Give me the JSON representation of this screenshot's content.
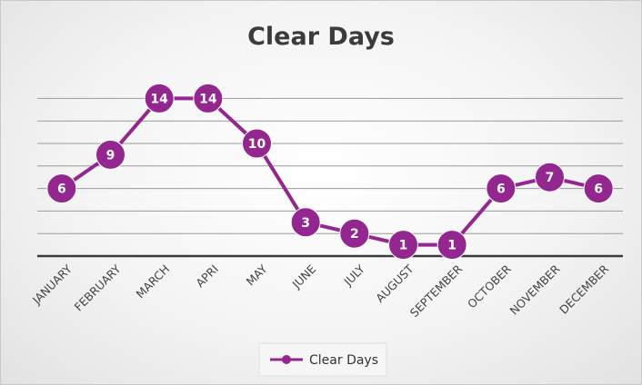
{
  "chart_data": {
    "type": "line",
    "title": "Clear Days",
    "categories": [
      "JANUARY",
      "FEBRUARY",
      "MARCH",
      "APRI",
      "MAY",
      "JUNE",
      "JULY",
      "AUGUST",
      "SEPTEMBER",
      "OCTOBER",
      "NOVEMBER",
      "DECEMBER"
    ],
    "series": [
      {
        "name": "Clear Days",
        "values": [
          6,
          9,
          14,
          14,
          10,
          3,
          2,
          1,
          1,
          6,
          7,
          6
        ]
      }
    ],
    "ylim": [
      0,
      14
    ],
    "grid": true,
    "legend": "bottom",
    "data_labels": true,
    "colors": {
      "series": "#93278f",
      "grid": "#9a9a9a",
      "baseline": "#3a3a3a"
    }
  }
}
